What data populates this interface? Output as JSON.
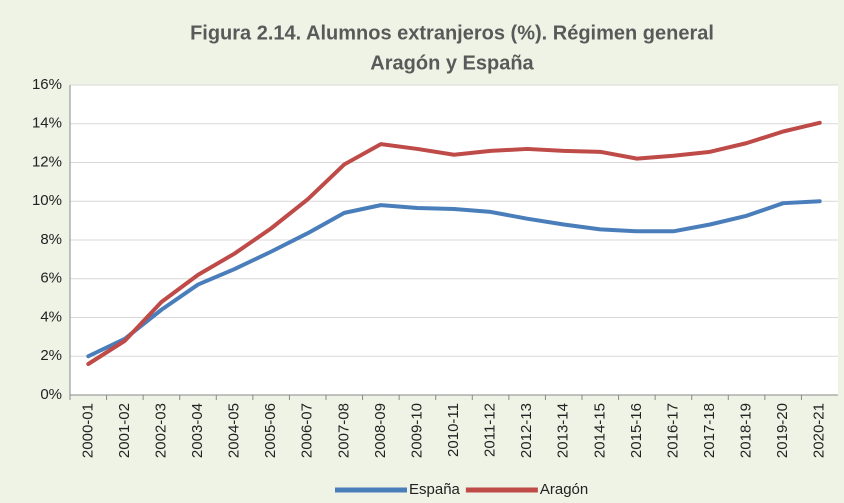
{
  "chart_data": {
    "type": "line",
    "title": "Figura 2.14. Alumnos extranjeros (%). Régimen general",
    "subtitle": "Aragón y España",
    "categories": [
      "2000-01",
      "2001-02",
      "2002-03",
      "2003-04",
      "2004-05",
      "2005-06",
      "2006-07",
      "2007-08",
      "2008-09",
      "2009-10",
      "2010-11",
      "2011-12",
      "2012-13",
      "2013-14",
      "2014-15",
      "2015-16",
      "2016-17",
      "2017-18",
      "2018-19",
      "2019-20",
      "2020-21"
    ],
    "series": [
      {
        "name": "España",
        "color": "#4a7ebb",
        "values": [
          2.0,
          2.9,
          4.4,
          5.7,
          6.5,
          7.4,
          8.35,
          9.4,
          9.8,
          9.65,
          9.6,
          9.45,
          9.1,
          8.8,
          8.55,
          8.45,
          8.45,
          8.8,
          9.25,
          9.9,
          10.0
        ]
      },
      {
        "name": "Aragón",
        "color": "#be4b48",
        "values": [
          1.6,
          2.8,
          4.8,
          6.2,
          7.3,
          8.6,
          10.1,
          11.9,
          12.95,
          12.7,
          12.4,
          12.6,
          12.7,
          12.6,
          12.55,
          12.2,
          12.35,
          12.55,
          13.0,
          13.6,
          14.05
        ]
      }
    ],
    "ylim": [
      0,
      16
    ],
    "yticks": [
      {
        "value": 0,
        "label": "0%"
      },
      {
        "value": 2,
        "label": "2%"
      },
      {
        "value": 4,
        "label": "4%"
      },
      {
        "value": 6,
        "label": "6%"
      },
      {
        "value": 8,
        "label": "8%"
      },
      {
        "value": 10,
        "label": "10%"
      },
      {
        "value": 12,
        "label": "12%"
      },
      {
        "value": 14,
        "label": "14%"
      },
      {
        "value": 16,
        "label": "16%"
      }
    ],
    "grid": true,
    "legend": "bottom"
  }
}
